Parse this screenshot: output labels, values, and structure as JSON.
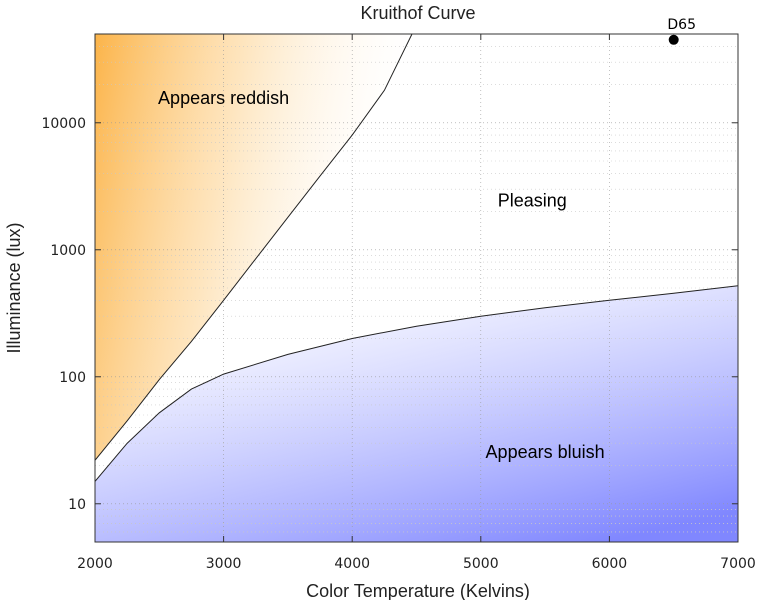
{
  "chart_data": {
    "type": "line",
    "title": "Kruithof Curve",
    "xlabel": "Color Temperature (Kelvins)",
    "ylabel": "Illuminance (lux)",
    "xlim": [
      2000,
      7000
    ],
    "ylim": [
      5,
      50000
    ],
    "yscale": "log",
    "grid": true,
    "x_ticks": [
      2000,
      3000,
      4000,
      5000,
      6000,
      7000
    ],
    "y_ticks": [
      10,
      100,
      1000,
      10000
    ],
    "x_tick_labels": [
      "2000",
      "3000",
      "4000",
      "5000",
      "6000",
      "7000"
    ],
    "y_tick_labels": [
      "10",
      "100",
      "1000",
      "10000"
    ],
    "series": [
      {
        "role": "upper-boundary",
        "points": [
          [
            2000,
            22
          ],
          [
            2250,
            45
          ],
          [
            2500,
            95
          ],
          [
            2750,
            190
          ],
          [
            3000,
            400
          ],
          [
            3250,
            850
          ],
          [
            3500,
            1800
          ],
          [
            3750,
            3800
          ],
          [
            4000,
            8000
          ],
          [
            4250,
            18000
          ],
          [
            4465,
            50000
          ]
        ]
      },
      {
        "role": "lower-boundary",
        "points": [
          [
            2000,
            15
          ],
          [
            2250,
            30
          ],
          [
            2500,
            52
          ],
          [
            2750,
            80
          ],
          [
            3000,
            105
          ],
          [
            3500,
            150
          ],
          [
            4000,
            200
          ],
          [
            4500,
            250
          ],
          [
            5000,
            300
          ],
          [
            5500,
            350
          ],
          [
            6000,
            400
          ],
          [
            6500,
            455
          ],
          [
            7000,
            520
          ]
        ]
      }
    ],
    "regions": [
      {
        "label": "Appears reddish",
        "x": 3000,
        "y": 14000,
        "color": "#fbb040"
      },
      {
        "label": "Pleasing",
        "x": 5400,
        "y": 2200
      },
      {
        "label": "Appears bluish",
        "x": 5500,
        "y": 23,
        "color": "#7f86ff"
      }
    ],
    "points": [
      {
        "label": "D65",
        "x": 6500,
        "y": 45000
      }
    ]
  }
}
